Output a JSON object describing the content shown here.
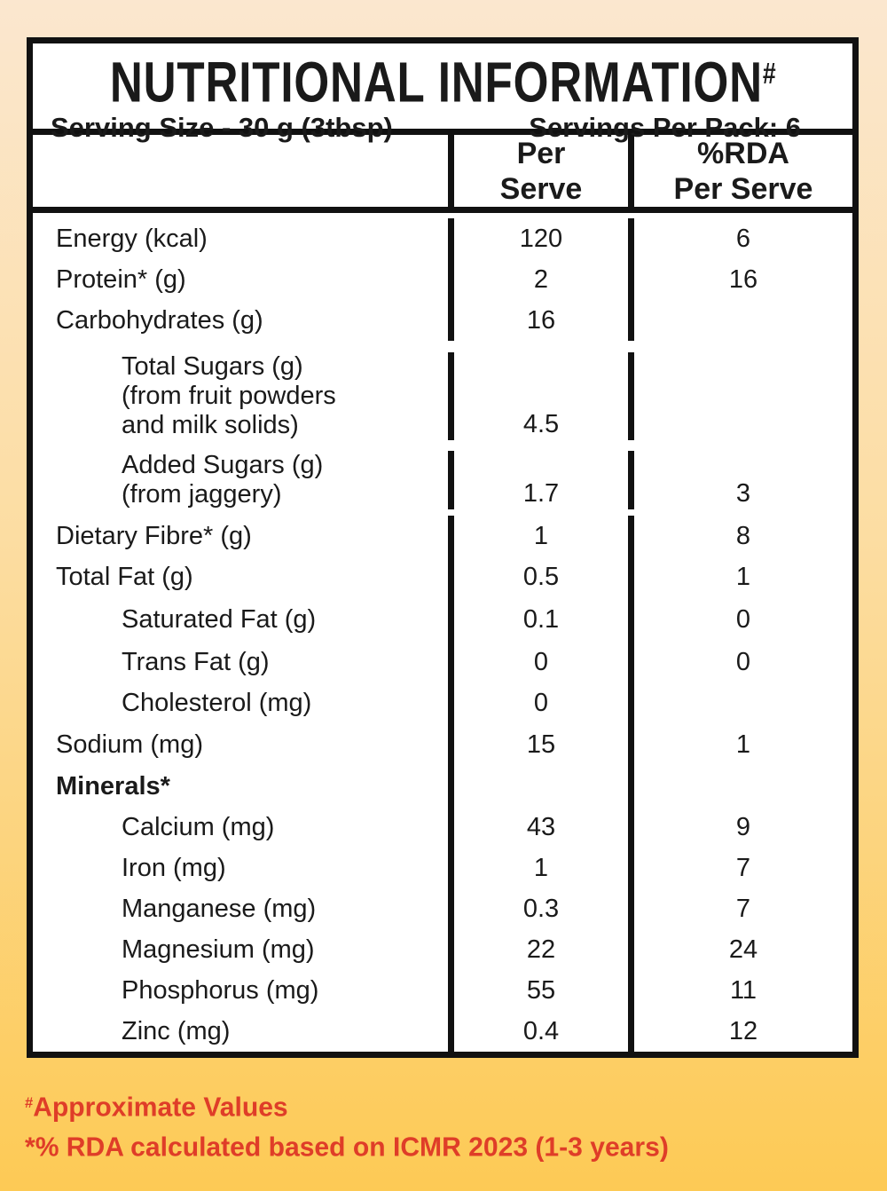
{
  "header": {
    "title": "NUTRITIONAL INFORMATION",
    "title_mark": "#",
    "serving_size": "Serving Size - 30 g (3tbsp)",
    "servings_per_pack": "Servings Per Pack: 6"
  },
  "columns": {
    "per_serve": [
      "Per",
      "Serve"
    ],
    "rda": [
      "%RDA",
      "Per Serve"
    ]
  },
  "rows": [
    {
      "id": "energy",
      "label_lines": [
        "Energy (kcal)"
      ],
      "sub": false,
      "bold": false,
      "per_serve": "120",
      "rda": "6"
    },
    {
      "id": "protein",
      "label_lines": [
        "Protein* (g)"
      ],
      "sub": false,
      "bold": false,
      "per_serve": "2",
      "rda": "16"
    },
    {
      "id": "carbohydrates",
      "label_lines": [
        "Carbohydrates (g)"
      ],
      "sub": false,
      "bold": false,
      "per_serve": "16",
      "rda": ""
    },
    {
      "id": "total-sugars",
      "label_lines": [
        "Total Sugars (g)",
        "(from fruit powders",
        "and milk solids)"
      ],
      "sub": true,
      "bold": false,
      "per_serve": "4.5",
      "rda": ""
    },
    {
      "id": "added-sugars",
      "label_lines": [
        "Added Sugars (g)",
        "(from jaggery)"
      ],
      "sub": true,
      "bold": false,
      "per_serve": "1.7",
      "rda": "3"
    },
    {
      "id": "dietary-fibre",
      "label_lines": [
        "Dietary Fibre* (g)"
      ],
      "sub": false,
      "bold": false,
      "per_serve": "1",
      "rda": "8"
    },
    {
      "id": "total-fat",
      "label_lines": [
        "Total Fat (g)"
      ],
      "sub": false,
      "bold": false,
      "per_serve": "0.5",
      "rda": "1"
    },
    {
      "id": "saturated-fat",
      "label_lines": [
        "Saturated Fat (g)"
      ],
      "sub": true,
      "bold": false,
      "per_serve": "0.1",
      "rda": "0"
    },
    {
      "id": "trans-fat",
      "label_lines": [
        "Trans Fat (g)"
      ],
      "sub": true,
      "bold": false,
      "per_serve": "0",
      "rda": "0"
    },
    {
      "id": "cholesterol",
      "label_lines": [
        "Cholesterol (mg)"
      ],
      "sub": true,
      "bold": false,
      "per_serve": "0",
      "rda": ""
    },
    {
      "id": "sodium",
      "label_lines": [
        "Sodium (mg)"
      ],
      "sub": false,
      "bold": false,
      "per_serve": "15",
      "rda": "1"
    },
    {
      "id": "minerals",
      "label_lines": [
        "Minerals*"
      ],
      "sub": false,
      "bold": true,
      "per_serve": "",
      "rda": ""
    },
    {
      "id": "calcium",
      "label_lines": [
        "Calcium (mg)"
      ],
      "sub": true,
      "bold": false,
      "per_serve": "43",
      "rda": "9"
    },
    {
      "id": "iron",
      "label_lines": [
        "Iron (mg)"
      ],
      "sub": true,
      "bold": false,
      "per_serve": "1",
      "rda": "7"
    },
    {
      "id": "manganese",
      "label_lines": [
        "Manganese (mg)"
      ],
      "sub": true,
      "bold": false,
      "per_serve": "0.3",
      "rda": "7"
    },
    {
      "id": "magnesium",
      "label_lines": [
        "Magnesium (mg)"
      ],
      "sub": true,
      "bold": false,
      "per_serve": "22",
      "rda": "24"
    },
    {
      "id": "phosphorus",
      "label_lines": [
        "Phosphorus (mg)"
      ],
      "sub": true,
      "bold": false,
      "per_serve": "55",
      "rda": "11"
    },
    {
      "id": "zinc",
      "label_lines": [
        "Zinc (mg)"
      ],
      "sub": true,
      "bold": false,
      "per_serve": "0.4",
      "rda": "12"
    }
  ],
  "footnotes": [
    {
      "mark": "#",
      "text": "Approximate Values"
    },
    {
      "mark": "",
      "text": "*% RDA calculated based on ICMR 2023 (1-3 years)"
    }
  ],
  "colors": {
    "accent_red": "#df3d28",
    "background_top": "#fbe7cf",
    "background_bottom": "#fdca55",
    "border_black": "#111111",
    "table_background": "#ffffff"
  }
}
